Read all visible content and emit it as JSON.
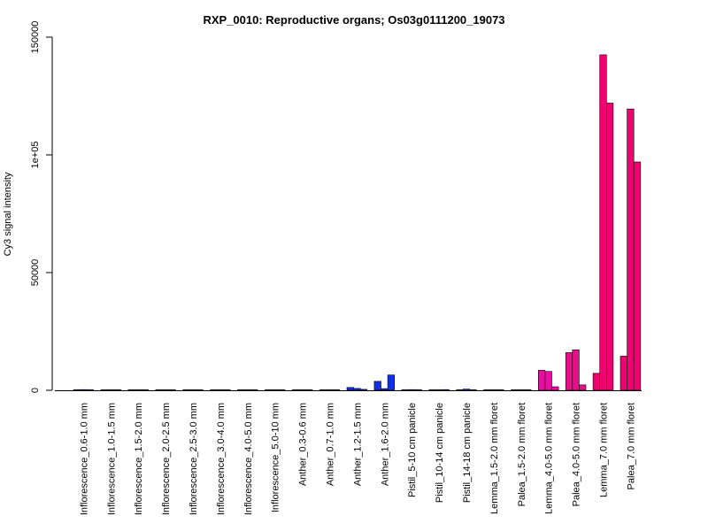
{
  "chart_data": {
    "type": "bar",
    "title": "RXP_0010: Reproductive organs; Os03g0111200_19073",
    "xlabel": "",
    "ylabel": "Cy3 signal intensity",
    "ylim": [
      0,
      150000
    ],
    "yticks": [
      0,
      50000,
      100000,
      150000
    ],
    "ytick_labels": [
      "0",
      "50000",
      "1e+05",
      "150000"
    ],
    "grid": false,
    "legend": "none",
    "categories": [
      "Inflorescence_0.6-1.0 mm",
      "Inflorescence_1.0-1.5 mm",
      "Inflorescence_1.5-2.0 mm",
      "Inflorescence_2.0-2.5 mm",
      "Inflorescence_2.5-3.0 mm",
      "Inflorescence_3.0-4.0 mm",
      "Inflorescence_4.0-5.0 mm",
      "Inflorescence_5.0-10 mm",
      "Anther_0.3-0.6 mm",
      "Anther_0.7-1.0 mm",
      "Anther_1.2-1.5 mm",
      "Anther_1.6-2.0 mm",
      "Pistil_5-10 cm panicle",
      "Pistil_10-14 cm panicle",
      "Pistil_14-18 cm panicle",
      "Lemma_1.5-2.0 mm floret",
      "Palea_1.5-2.0 mm floret",
      "Lemma_4.0-5.0 mm floret",
      "Palea_4.0-5.0 mm floret",
      "Lemma_7.0 mm floret",
      "Palea_7.0 mm floret"
    ],
    "bars": [
      {
        "category": "Inflorescence_0.6-1.0 mm",
        "values": [
          150,
          300,
          150
        ],
        "color": "#0000FF"
      },
      {
        "category": "Inflorescence_1.0-1.5 mm",
        "values": [
          100,
          150,
          100
        ],
        "color": "#0000FF"
      },
      {
        "category": "Inflorescence_1.5-2.0 mm",
        "values": [
          100,
          100,
          100
        ],
        "color": "#0000FF"
      },
      {
        "category": "Inflorescence_2.0-2.5 mm",
        "values": [
          100,
          150,
          100
        ],
        "color": "#0000FF"
      },
      {
        "category": "Inflorescence_2.5-3.0 mm",
        "values": [
          100,
          100,
          100
        ],
        "color": "#0000FF"
      },
      {
        "category": "Inflorescence_3.0-4.0 mm",
        "values": [
          100,
          100,
          100
        ],
        "color": "#0000FF"
      },
      {
        "category": "Inflorescence_4.0-5.0 mm",
        "values": [
          100,
          100,
          100
        ],
        "color": "#0000FF"
      },
      {
        "category": "Inflorescence_5.0-10 mm",
        "values": [
          100,
          100,
          100
        ],
        "color": "#0000FF"
      },
      {
        "category": "Anther_0.3-0.6 mm",
        "values": [
          100,
          100,
          100
        ],
        "color": "#0000FF"
      },
      {
        "category": "Anther_0.7-1.0 mm",
        "values": [
          100,
          200,
          100
        ],
        "color": "#0000FF"
      },
      {
        "category": "Anther_1.2-1.5 mm",
        "values": [
          1200,
          800,
          400
        ],
        "color": "#1030E8"
      },
      {
        "category": "Anther_1.6-2.0 mm",
        "values": [
          3800,
          700,
          6500
        ],
        "color": "#1030E8"
      },
      {
        "category": "Pistil_5-10 cm panicle",
        "values": [
          200,
          300,
          200
        ],
        "color": "#1030E8"
      },
      {
        "category": "Pistil_10-14 cm panicle",
        "values": [
          100,
          150,
          300
        ],
        "color": "#1030E8"
      },
      {
        "category": "Pistil_14-18 cm panicle",
        "values": [
          200,
          500,
          200
        ],
        "color": "#1030E8"
      },
      {
        "category": "Lemma_1.5-2.0 mm floret",
        "values": [
          150,
          150,
          150
        ],
        "color": "#1030E8"
      },
      {
        "category": "Palea_1.5-2.0 mm floret",
        "values": [
          100,
          150,
          200
        ],
        "color": "#1030E8"
      },
      {
        "category": "Lemma_4.0-5.0 mm floret",
        "values": [
          8500,
          8000,
          1500
        ],
        "color": "#E80FA0"
      },
      {
        "category": "Palea_4.0-5.0 mm floret",
        "values": [
          16000,
          17200,
          2300
        ],
        "color": "#E8108A"
      },
      {
        "category": "Lemma_7.0 mm floret",
        "values": [
          7200,
          142500,
          122000
        ],
        "color": "#F00070"
      },
      {
        "category": "Palea_7.0 mm floret",
        "values": [
          14500,
          119500,
          97000
        ],
        "color": "#F00070"
      }
    ]
  }
}
